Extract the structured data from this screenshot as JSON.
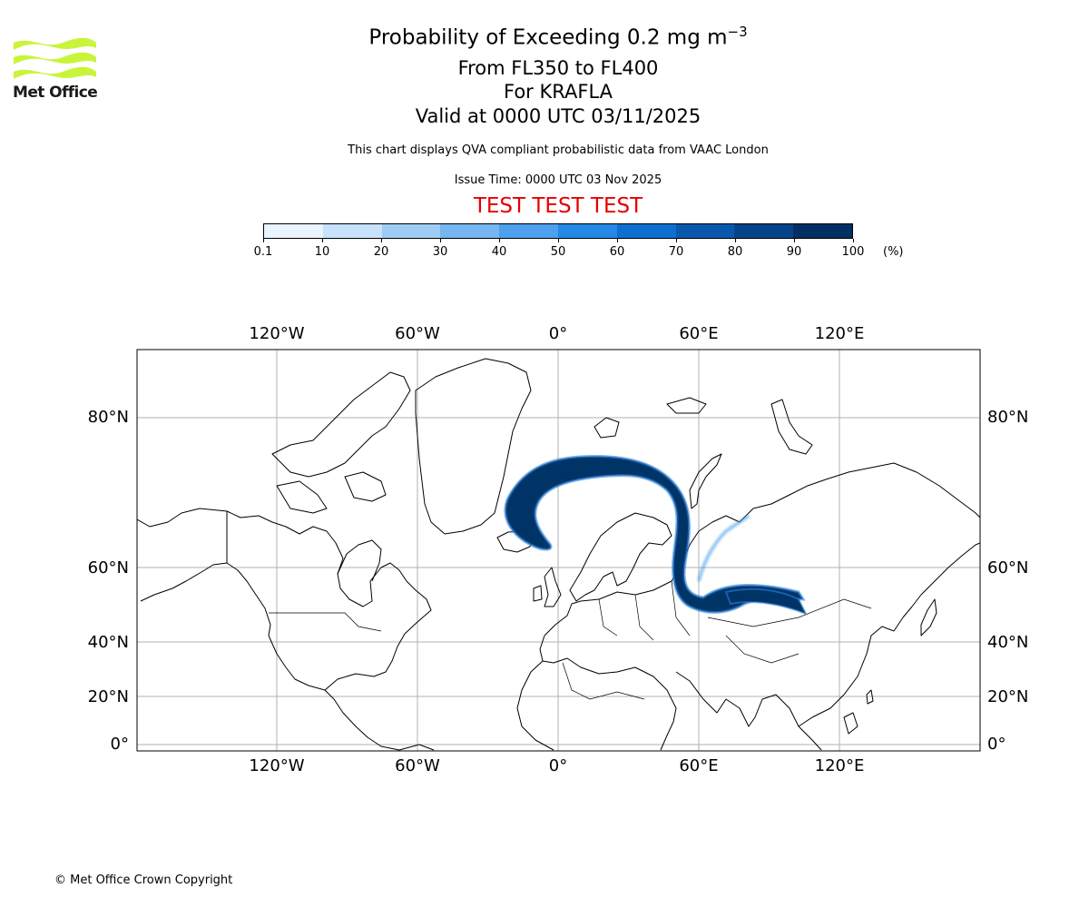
{
  "header": {
    "logo_text": "Met Office",
    "title_prefix": "Probability of Exceeding 0.2 mg m",
    "title_superscript": "−3",
    "level_range": "From FL350 to FL400",
    "volcano": "For KRAFLA",
    "valid_time": "Valid at 0000 UTC 03/11/2025",
    "description": "This chart displays QVA compliant probabilistic data from VAAC London",
    "issue_time": "Issue Time: 0000 UTC 03 Nov 2025",
    "test_banner": "TEST TEST TEST"
  },
  "colorbar": {
    "ticks": [
      "0.1",
      "10",
      "20",
      "30",
      "40",
      "50",
      "60",
      "70",
      "80",
      "90",
      "100"
    ],
    "unit": "(%)",
    "colors": [
      "#eaf4ff",
      "#c8e2fb",
      "#9fccf5",
      "#77b6f0",
      "#4ca0ec",
      "#2488e6",
      "#0f6fd0",
      "#0a58ad",
      "#06448a",
      "#032f63"
    ]
  },
  "map": {
    "lon_labels": [
      "120°W",
      "60°W",
      "0°",
      "60°E",
      "120°E"
    ],
    "lat_labels": [
      "80°N",
      "60°N",
      "40°N",
      "20°N",
      "0°"
    ],
    "plume_color": "#003366",
    "plume_edge_color": "#2a7fd6"
  },
  "footer": {
    "copyright": "© Met Office Crown Copyright"
  }
}
